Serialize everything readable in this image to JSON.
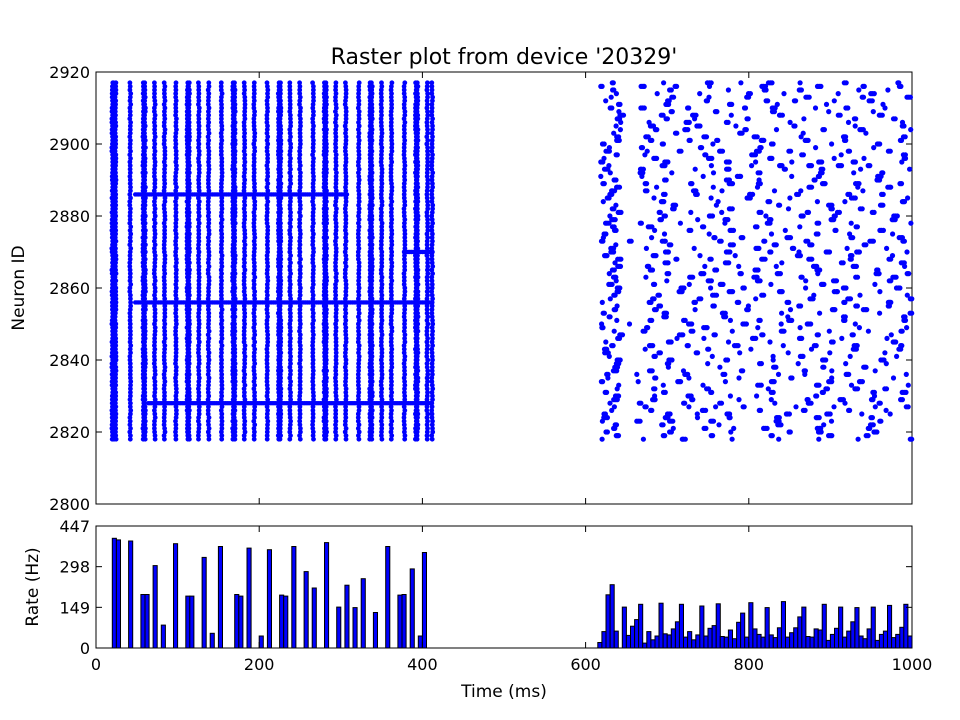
{
  "chart_data": [
    {
      "type": "scatter",
      "title": "Raster plot from device '20329'",
      "xlabel": "",
      "ylabel": "Neuron ID",
      "xlim": [
        0,
        1000
      ],
      "ylim": [
        2800,
        2920
      ],
      "y_ticks": [
        "2800",
        "2820",
        "2840",
        "2860",
        "2880",
        "2900",
        "2920"
      ],
      "neuron_range": [
        2818,
        2917
      ],
      "marker_color": "#0000ff",
      "phases": [
        {
          "name": "synchronous",
          "x_range": [
            20,
            412
          ],
          "burst_times": [
            20,
            22,
            24,
            42,
            58,
            60,
            72,
            84,
            98,
            112,
            114,
            126,
            138,
            154,
            168,
            170,
            182,
            194,
            210,
            224,
            226,
            238,
            250,
            266,
            280,
            282,
            294,
            306,
            322,
            336,
            338,
            350,
            362,
            378,
            392,
            394,
            406,
            412
          ],
          "horizontal_lines": [
            {
              "neuron": 2886,
              "x_range": [
                48,
                308
              ]
            },
            {
              "neuron": 2856,
              "x_range": [
                48,
                412
              ]
            },
            {
              "neuron": 2828,
              "x_range": [
                64,
                412
              ]
            },
            {
              "neuron": 2870,
              "x_range": [
                378,
                412
              ]
            }
          ]
        },
        {
          "name": "asynchronous",
          "x_range": [
            618,
            1000
          ],
          "approx_rate_hz": 18
        }
      ]
    },
    {
      "type": "bar",
      "title": "",
      "xlabel": "Time (ms)",
      "ylabel": "Rate (Hz)",
      "xlim": [
        0,
        1000
      ],
      "ylim": [
        0,
        447
      ],
      "x_ticks": [
        "0",
        "200",
        "400",
        "600",
        "800",
        "1000"
      ],
      "y_ticks": [
        "0",
        "149",
        "298",
        "447"
      ],
      "bin_width": 5,
      "bar_color": "#0000ff",
      "bins": [
        [
          20,
          402
        ],
        [
          25,
          396
        ],
        [
          40,
          392
        ],
        [
          55,
          196
        ],
        [
          60,
          196
        ],
        [
          70,
          302
        ],
        [
          80,
          84
        ],
        [
          95,
          382
        ],
        [
          110,
          190
        ],
        [
          115,
          190
        ],
        [
          130,
          332
        ],
        [
          140,
          54
        ],
        [
          150,
          372
        ],
        [
          170,
          196
        ],
        [
          175,
          190
        ],
        [
          185,
          366
        ],
        [
          200,
          44
        ],
        [
          210,
          360
        ],
        [
          225,
          194
        ],
        [
          230,
          190
        ],
        [
          240,
          372
        ],
        [
          255,
          280
        ],
        [
          265,
          220
        ],
        [
          280,
          386
        ],
        [
          295,
          150
        ],
        [
          305,
          230
        ],
        [
          315,
          148
        ],
        [
          325,
          254
        ],
        [
          340,
          130
        ],
        [
          355,
          372
        ],
        [
          370,
          194
        ],
        [
          375,
          196
        ],
        [
          385,
          290
        ],
        [
          395,
          44
        ],
        [
          400,
          350
        ],
        [
          615,
          20
        ],
        [
          620,
          60
        ],
        [
          625,
          195
        ],
        [
          630,
          232
        ],
        [
          635,
          62
        ],
        [
          645,
          150
        ],
        [
          650,
          46
        ],
        [
          655,
          80
        ],
        [
          660,
          104
        ],
        [
          665,
          160
        ],
        [
          670,
          18
        ],
        [
          675,
          60
        ],
        [
          680,
          30
        ],
        [
          685,
          44
        ],
        [
          690,
          164
        ],
        [
          695,
          52
        ],
        [
          700,
          48
        ],
        [
          705,
          70
        ],
        [
          710,
          96
        ],
        [
          715,
          160
        ],
        [
          720,
          40
        ],
        [
          725,
          60
        ],
        [
          730,
          30
        ],
        [
          735,
          48
        ],
        [
          740,
          154
        ],
        [
          745,
          44
        ],
        [
          750,
          72
        ],
        [
          755,
          82
        ],
        [
          760,
          162
        ],
        [
          765,
          42
        ],
        [
          770,
          40
        ],
        [
          775,
          66
        ],
        [
          780,
          34
        ],
        [
          785,
          94
        ],
        [
          790,
          128
        ],
        [
          795,
          40
        ],
        [
          800,
          166
        ],
        [
          805,
          70
        ],
        [
          810,
          50
        ],
        [
          815,
          40
        ],
        [
          820,
          148
        ],
        [
          825,
          48
        ],
        [
          830,
          38
        ],
        [
          835,
          74
        ],
        [
          840,
          170
        ],
        [
          845,
          40
        ],
        [
          850,
          56
        ],
        [
          855,
          74
        ],
        [
          860,
          114
        ],
        [
          865,
          150
        ],
        [
          870,
          42
        ],
        [
          875,
          40
        ],
        [
          880,
          70
        ],
        [
          885,
          66
        ],
        [
          890,
          160
        ],
        [
          895,
          28
        ],
        [
          900,
          50
        ],
        [
          905,
          72
        ],
        [
          910,
          150
        ],
        [
          915,
          40
        ],
        [
          920,
          62
        ],
        [
          925,
          96
        ],
        [
          930,
          148
        ],
        [
          935,
          44
        ],
        [
          940,
          34
        ],
        [
          945,
          70
        ],
        [
          950,
          150
        ],
        [
          955,
          28
        ],
        [
          960,
          50
        ],
        [
          965,
          62
        ],
        [
          970,
          156
        ],
        [
          975,
          38
        ],
        [
          980,
          50
        ],
        [
          985,
          76
        ],
        [
          990,
          160
        ],
        [
          995,
          44
        ]
      ]
    }
  ]
}
